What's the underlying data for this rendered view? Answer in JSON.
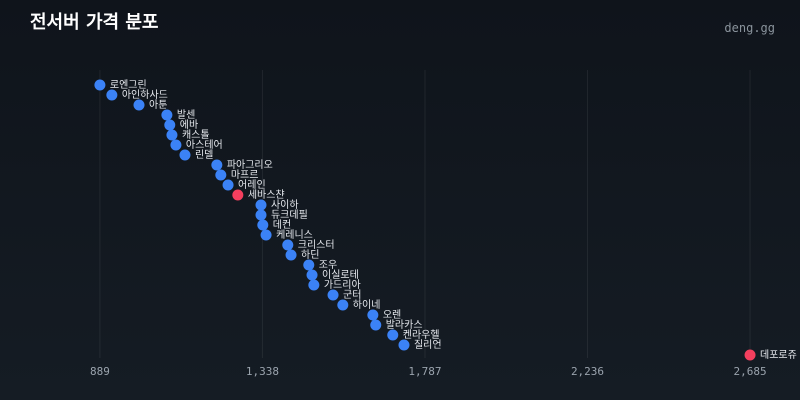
{
  "chart_data": {
    "type": "dot",
    "title": "전서버 가격 분포",
    "source": "deng.gg",
    "categories": [
      "로엔그린",
      "아인하사드",
      "아툰",
      "발센",
      "에바",
      "캐스톨",
      "아스테어",
      "린델",
      "파아그리오",
      "마프르",
      "어레인",
      "세바스챤",
      "사이하",
      "듀크데필",
      "데컨",
      "케레니스",
      "크리스터",
      "하딘",
      "조우",
      "이실로테",
      "가드리아",
      "군터",
      "하이네",
      "오렌",
      "발라카스",
      "켄라우헬",
      "질리언",
      "데포로쥬"
    ],
    "x": [
      889,
      922,
      997,
      1074,
      1082,
      1088,
      1099,
      1124,
      1212,
      1223,
      1243,
      1270,
      1334,
      1334,
      1339,
      1348,
      1408,
      1417,
      1466,
      1475,
      1480,
      1533,
      1560,
      1643,
      1651,
      1698,
      1729,
      2685
    ],
    "colors": [
      "#3b82f6",
      "#3b82f6",
      "#3b82f6",
      "#3b82f6",
      "#3b82f6",
      "#3b82f6",
      "#3b82f6",
      "#3b82f6",
      "#3b82f6",
      "#3b82f6",
      "#3b82f6",
      "#f43f5e",
      "#3b82f6",
      "#3b82f6",
      "#3b82f6",
      "#3b82f6",
      "#3b82f6",
      "#3b82f6",
      "#3b82f6",
      "#3b82f6",
      "#3b82f6",
      "#3b82f6",
      "#3b82f6",
      "#3b82f6",
      "#3b82f6",
      "#3b82f6",
      "#3b82f6",
      "#f43f5e"
    ],
    "xlim": [
      613,
      2823
    ],
    "xticks": [
      889,
      {
        "value": 1338,
        "label": "1,338"
      },
      {
        "value": 1787,
        "label": "1,787"
      },
      {
        "value": 2236,
        "label": "2,236"
      },
      {
        "value": 2685,
        "label": "2,685"
      }
    ],
    "grid": true
  }
}
